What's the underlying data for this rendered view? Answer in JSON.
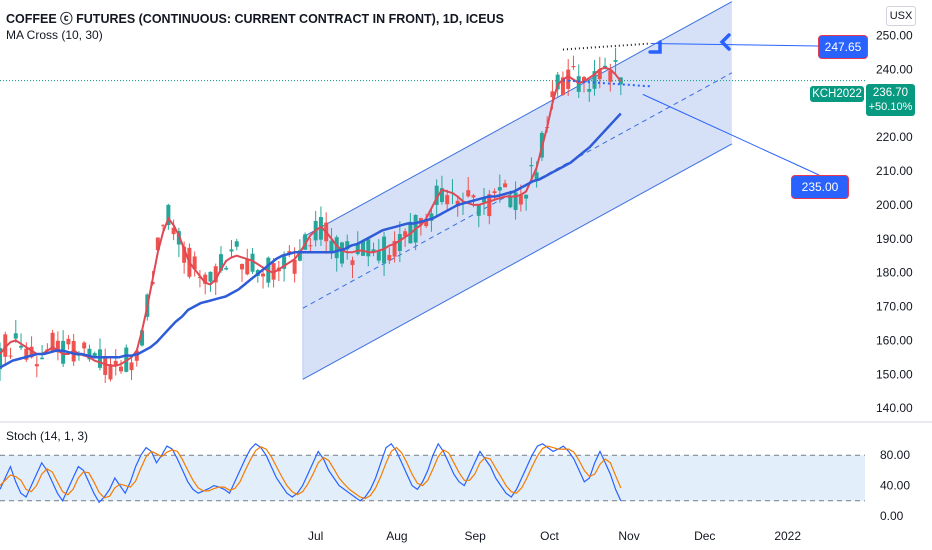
{
  "header": {
    "title": "COFFEE ⓒ FUTURES (CONTINUOUS: CURRENT CONTRACT IN FRONT), 1D, ICEUS",
    "indicator": "MA Cross (10, 30)",
    "stoch_label": "Stoch (14, 1, 3)",
    "currency": "USX"
  },
  "price_tag": {
    "symbol": "KCH2022",
    "price": "236.70",
    "change": "+50.10%",
    "color": "#089981"
  },
  "callouts": [
    {
      "name": "upper-target",
      "text": "247.65"
    },
    {
      "name": "lower-target",
      "text": "235.00"
    }
  ],
  "colors": {
    "up": "#26a69a",
    "down": "#ef5350",
    "ma_fast": "#e04854",
    "ma_slow": "#2e5bd8",
    "channel_fill": "#cfdcf7",
    "channel_line": "#3a6fe0",
    "stoch_k": "#2962ff",
    "stoch_d": "#f57c00",
    "stoch_band": "#e3eefb"
  },
  "chart_data": [
    {
      "type": "candlestick",
      "title": "COFFEE ⓒ FUTURES (CONTINUOUS: CURRENT CONTRACT IN FRONT), 1D, ICEUS",
      "x_ticks": [
        "Jul",
        "Aug",
        "Sep",
        "Oct",
        "Nov",
        "Dec",
        "2022"
      ],
      "y_ticks": [
        "140.00",
        "150.00",
        "160.00",
        "170.00",
        "180.00",
        "190.00",
        "200.00",
        "210.00",
        "220.00",
        "230.00",
        "240.00",
        "250.00"
      ],
      "ylim": [
        136.5,
        260.5
      ],
      "last_price": 236.7,
      "levels": [
        247.65,
        235.0
      ],
      "channel": {
        "upper_start": 190.5,
        "upper_end": 260.0,
        "lower_start": 148.5,
        "lower_end": 218.0,
        "start_day": 120,
        "end_day": 290
      },
      "series": [
        {
          "name": "MA 10",
          "values": [
            156,
            158,
            159.5,
            160,
            159,
            158,
            157,
            156,
            156,
            157,
            158,
            157,
            156,
            156,
            157,
            156,
            155.5,
            155,
            154,
            153.5,
            153,
            152.5,
            152.5,
            153,
            154,
            155,
            157,
            163,
            170,
            178,
            186,
            192,
            196,
            194,
            191,
            187,
            183,
            181,
            179,
            177,
            176.5,
            178,
            181,
            183.5,
            184.5,
            185,
            184.5,
            184,
            183.5,
            182.5,
            181.5,
            180.5,
            180,
            181,
            182,
            183,
            184,
            186,
            188.5,
            191,
            192.5,
            193.5,
            192,
            190,
            188,
            186.5,
            186,
            186,
            186.5,
            186.5,
            186,
            186,
            186.5,
            187,
            188,
            188.5,
            189.5,
            190.5,
            191.5,
            193,
            194,
            196,
            199,
            202,
            204.5,
            204,
            203.5,
            202.5,
            201,
            200.5,
            200,
            200,
            200.5,
            201,
            201.5,
            202,
            202.5,
            202.5,
            202.5,
            203,
            204,
            207.5,
            211,
            217,
            223,
            230,
            235.5,
            237,
            238,
            237,
            236,
            236.5,
            237.5,
            238.5,
            240,
            240.5,
            240,
            238.5,
            236.5
          ]
        },
        {
          "name": "MA 30",
          "values": [
            152,
            153,
            154,
            154.5,
            155,
            155.5,
            156,
            156,
            156.5,
            157,
            157,
            156.5,
            156,
            156,
            155.5,
            155,
            155,
            155,
            155,
            155,
            155.5,
            155.5,
            156,
            157,
            158,
            159.5,
            161.5,
            163.5,
            165.5,
            167,
            169,
            170,
            171,
            171.5,
            172,
            172.5,
            173,
            174,
            175,
            176.5,
            178,
            179.5,
            181,
            182.5,
            184,
            185,
            185.5,
            186,
            186,
            186,
            186,
            186,
            186,
            186,
            186.5,
            187,
            188,
            188.5,
            189.5,
            190.5,
            191.5,
            192.5,
            193,
            193.5,
            194,
            194.5,
            194.5,
            195,
            195.5,
            196,
            197,
            198,
            199,
            200,
            200.5,
            201,
            201.5,
            202,
            202.5,
            202.5,
            203,
            203.5,
            204,
            205,
            206,
            207,
            207.5,
            208.5,
            209.5,
            210.5,
            211.5,
            212.5,
            214,
            215.5,
            217,
            219,
            221,
            223,
            225,
            227
          ]
        },
        {
          "name": "Stoch %K",
          "values": [
            35,
            50,
            65,
            45,
            30,
            25,
            40,
            55,
            70,
            60,
            45,
            30,
            20,
            35,
            50,
            65,
            60,
            45,
            30,
            18,
            25,
            35,
            50,
            40,
            30,
            45,
            65,
            80,
            90,
            85,
            70,
            80,
            92,
            88,
            75,
            60,
            45,
            35,
            30,
            33,
            36,
            40,
            38,
            35,
            30,
            45,
            60,
            75,
            88,
            95,
            90,
            80,
            65,
            50,
            40,
            30,
            25,
            30,
            40,
            55,
            70,
            85,
            75,
            60,
            50,
            40,
            35,
            30,
            25,
            20,
            25,
            35,
            50,
            70,
            90,
            95,
            85,
            70,
            55,
            40,
            35,
            45,
            60,
            80,
            95,
            85,
            70,
            55,
            45,
            40,
            55,
            70,
            85,
            75,
            65,
            50,
            40,
            30,
            25,
            35,
            50,
            65,
            80,
            92,
            95,
            90,
            85,
            88,
            92,
            85,
            75,
            60,
            45,
            50,
            70,
            85,
            70,
            55,
            35,
            20
          ]
        },
        {
          "name": "Stoch %D",
          "values": [
            40,
            47,
            54,
            52,
            47,
            35,
            32,
            40,
            55,
            62,
            58,
            45,
            32,
            28,
            35,
            50,
            58,
            57,
            45,
            31,
            24,
            26,
            37,
            42,
            40,
            38,
            46,
            63,
            78,
            85,
            82,
            78,
            84,
            87,
            85,
            74,
            60,
            47,
            37,
            33,
            33,
            36,
            38,
            38,
            34,
            36,
            45,
            60,
            74,
            86,
            91,
            88,
            78,
            65,
            52,
            40,
            32,
            28,
            32,
            42,
            55,
            70,
            77,
            73,
            62,
            50,
            42,
            35,
            30,
            25,
            23,
            27,
            37,
            52,
            70,
            85,
            90,
            83,
            70,
            55,
            43,
            40,
            47,
            62,
            78,
            87,
            83,
            70,
            57,
            47,
            47,
            55,
            70,
            77,
            75,
            63,
            52,
            40,
            32,
            30,
            37,
            50,
            65,
            79,
            89,
            92,
            90,
            88,
            88,
            88,
            84,
            73,
            60,
            52,
            55,
            68,
            75,
            70,
            53,
            37
          ]
        }
      ]
    }
  ]
}
